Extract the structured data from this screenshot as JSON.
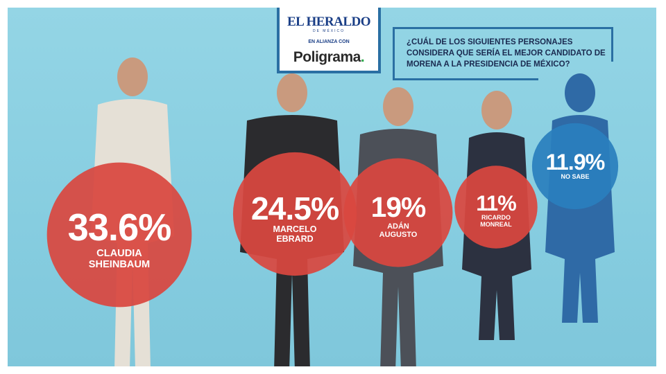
{
  "header": {
    "publisher": "EL HERALDO",
    "publisher_sub": "DE MÉXICO",
    "alliance": "EN ALIANZA CON",
    "partner": "Poligrama",
    "partner_dot": ".",
    "question": "¿CUÁL DE LOS SIGUIENTES PERSONAJES CONSIDERA QUE SERÍA EL MEJOR CANDIDATO DE MORENA A LA PRESIDENCIA DE MÉXICO?"
  },
  "colors": {
    "background": "#8ccfe0",
    "candidate_bubble": "#d9473f",
    "undecided_bubble": "#2a7fbd",
    "brand_blue": "#1a3e86"
  },
  "chart_data": {
    "type": "bubble",
    "title": "¿CUÁL DE LOS SIGUIENTES PERSONAJES CONSIDERA QUE SERÍA EL MEJOR CANDIDATO DE MORENA A LA PRESIDENCIA DE MÉXICO?",
    "unit": "%",
    "items": [
      {
        "label": "33.6%",
        "name": "CLAUDIA\nSHEINBAUM",
        "value": 33.6,
        "color": "#d9473f"
      },
      {
        "label": "24.5%",
        "name": "MARCELO\nEBRARD",
        "value": 24.5,
        "color": "#d9473f"
      },
      {
        "label": "19%",
        "name": "ADÁN\nAUGUSTO",
        "value": 19,
        "color": "#d9473f"
      },
      {
        "label": "11%",
        "name": "RICARDO\nMONREAL",
        "value": 11,
        "color": "#d9473f"
      },
      {
        "label": "11.9%",
        "name": "NO SABE",
        "value": 11.9,
        "color": "#2a7fbd"
      }
    ]
  }
}
